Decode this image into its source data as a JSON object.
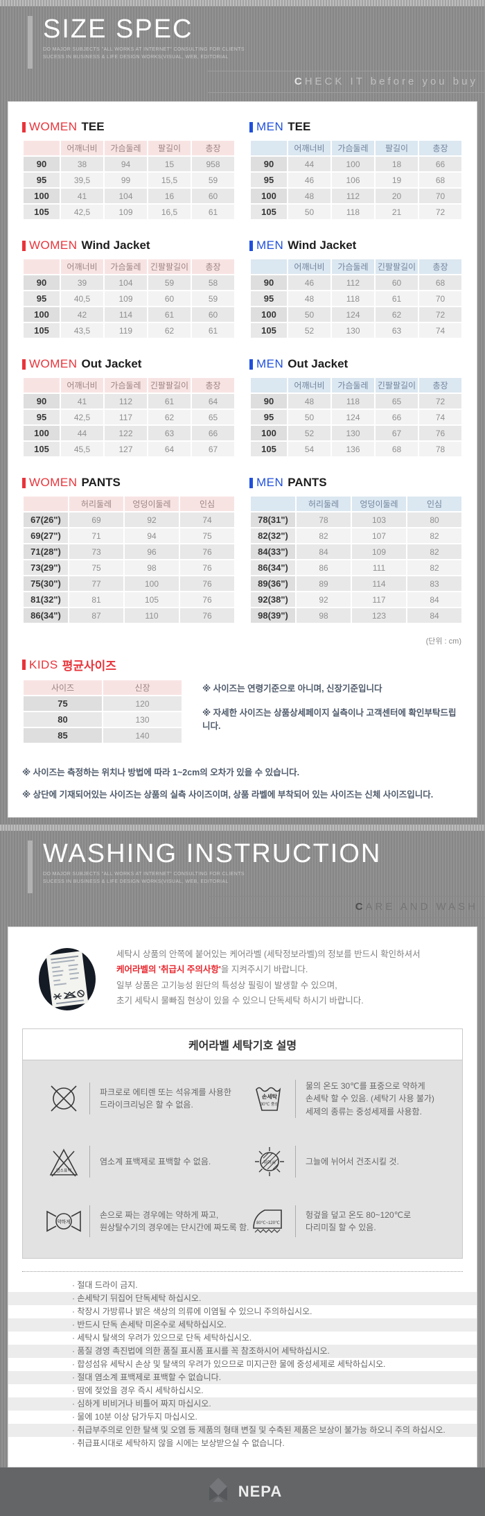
{
  "size_section": {
    "title": "SIZE SPEC",
    "subtitle1": "DO MAJOR SUBJECTS \"ALL WORKS AT INTERNET\" CONSULTING FOR CLIENTS",
    "subtitle2": "SUCESS IN BUSINESS & LIFE DESIGN WORKS(VISUAL, WEB, EDITORIAL",
    "tagline": "CHECK IT before you buy",
    "unit_note": "(단위 : cm)",
    "foot_notes": [
      "※ 사이즈는 측정하는 위치나 방법에 따라 1~2cm의 오차가 있을 수 있습니다.",
      "※ 상단에 기재되어있는 사이즈는 상품의 실측 사이즈이며, 상품 라벨에 부착되어 있는 사이즈는 신체 사이즈입니다."
    ]
  },
  "size_tables": [
    {
      "gender": "WOMEN",
      "name": "TEE",
      "headers": [
        "",
        "어깨너비",
        "가슴둘레",
        "팔길이",
        "총장"
      ],
      "rows": [
        {
          "label": "90",
          "values": [
            "38",
            "94",
            "15",
            "958"
          ]
        },
        {
          "label": "95",
          "values": [
            "39,5",
            "99",
            "15,5",
            "59"
          ]
        },
        {
          "label": "100",
          "values": [
            "41",
            "104",
            "16",
            "60"
          ]
        },
        {
          "label": "105",
          "values": [
            "42,5",
            "109",
            "16,5",
            "61"
          ]
        }
      ]
    },
    {
      "gender": "MEN",
      "name": "TEE",
      "headers": [
        "",
        "어깨너비",
        "가슴둘레",
        "팔길이",
        "총장"
      ],
      "rows": [
        {
          "label": "90",
          "values": [
            "44",
            "100",
            "18",
            "66"
          ]
        },
        {
          "label": "95",
          "values": [
            "46",
            "106",
            "19",
            "68"
          ]
        },
        {
          "label": "100",
          "values": [
            "48",
            "112",
            "20",
            "70"
          ]
        },
        {
          "label": "105",
          "values": [
            "50",
            "118",
            "21",
            "72"
          ]
        }
      ]
    },
    {
      "gender": "WOMEN",
      "name": "Wind Jacket",
      "headers": [
        "",
        "어깨너비",
        "가슴둘레",
        "긴팔팔길이",
        "총장"
      ],
      "rows": [
        {
          "label": "90",
          "values": [
            "39",
            "104",
            "59",
            "58"
          ]
        },
        {
          "label": "95",
          "values": [
            "40,5",
            "109",
            "60",
            "59"
          ]
        },
        {
          "label": "100",
          "values": [
            "42",
            "114",
            "61",
            "60"
          ]
        },
        {
          "label": "105",
          "values": [
            "43,5",
            "119",
            "62",
            "61"
          ]
        }
      ]
    },
    {
      "gender": "MEN",
      "name": "Wind Jacket",
      "headers": [
        "",
        "어깨너비",
        "가슴둘레",
        "긴팔팔길이",
        "총장"
      ],
      "rows": [
        {
          "label": "90",
          "values": [
            "46",
            "112",
            "60",
            "68"
          ]
        },
        {
          "label": "95",
          "values": [
            "48",
            "118",
            "61",
            "70"
          ]
        },
        {
          "label": "100",
          "values": [
            "50",
            "124",
            "62",
            "72"
          ]
        },
        {
          "label": "105",
          "values": [
            "52",
            "130",
            "63",
            "74"
          ]
        }
      ]
    },
    {
      "gender": "WOMEN",
      "name": "Out Jacket",
      "headers": [
        "",
        "어깨너비",
        "가슴둘레",
        "긴팔팔길이",
        "총장"
      ],
      "rows": [
        {
          "label": "90",
          "values": [
            "41",
            "112",
            "61",
            "64"
          ]
        },
        {
          "label": "95",
          "values": [
            "42,5",
            "117",
            "62",
            "65"
          ]
        },
        {
          "label": "100",
          "values": [
            "44",
            "122",
            "63",
            "66"
          ]
        },
        {
          "label": "105",
          "values": [
            "45,5",
            "127",
            "64",
            "67"
          ]
        }
      ]
    },
    {
      "gender": "MEN",
      "name": "Out Jacket",
      "headers": [
        "",
        "어깨너비",
        "가슴둘레",
        "긴팔팔길이",
        "총장"
      ],
      "rows": [
        {
          "label": "90",
          "values": [
            "48",
            "118",
            "65",
            "72"
          ]
        },
        {
          "label": "95",
          "values": [
            "50",
            "124",
            "66",
            "74"
          ]
        },
        {
          "label": "100",
          "values": [
            "52",
            "130",
            "67",
            "76"
          ]
        },
        {
          "label": "105",
          "values": [
            "54",
            "136",
            "68",
            "78"
          ]
        }
      ]
    },
    {
      "gender": "WOMEN",
      "name": "PANTS",
      "headers": [
        "",
        "허리둘레",
        "엉덩이둘레",
        "인심"
      ],
      "rows": [
        {
          "label": "67(26\")",
          "values": [
            "69",
            "92",
            "74"
          ]
        },
        {
          "label": "69(27\")",
          "values": [
            "71",
            "94",
            "75"
          ]
        },
        {
          "label": "71(28\")",
          "values": [
            "73",
            "96",
            "76"
          ]
        },
        {
          "label": "73(29\")",
          "values": [
            "75",
            "98",
            "76"
          ]
        },
        {
          "label": "75(30\")",
          "values": [
            "77",
            "100",
            "76"
          ]
        },
        {
          "label": "81(32\")",
          "values": [
            "81",
            "105",
            "76"
          ]
        },
        {
          "label": "86(34\")",
          "values": [
            "87",
            "110",
            "76"
          ]
        }
      ]
    },
    {
      "gender": "MEN",
      "name": "PANTS",
      "headers": [
        "",
        "허리둘레",
        "엉덩이둘레",
        "인심"
      ],
      "rows": [
        {
          "label": "78(31\")",
          "values": [
            "78",
            "103",
            "80"
          ]
        },
        {
          "label": "82(32\")",
          "values": [
            "82",
            "107",
            "82"
          ]
        },
        {
          "label": "84(33\")",
          "values": [
            "84",
            "109",
            "82"
          ]
        },
        {
          "label": "86(34\")",
          "values": [
            "86",
            "111",
            "82"
          ]
        },
        {
          "label": "89(36\")",
          "values": [
            "89",
            "114",
            "83"
          ]
        },
        {
          "label": "92(38\")",
          "values": [
            "92",
            "117",
            "84"
          ]
        },
        {
          "label": "98(39\")",
          "values": [
            "98",
            "123",
            "84"
          ]
        }
      ]
    }
  ],
  "kids": {
    "gender": "KIDS",
    "name": "평균사이즈",
    "table": {
      "headers": [
        "사이즈",
        "신장"
      ],
      "rows": [
        {
          "label": "75",
          "values": [
            "120"
          ]
        },
        {
          "label": "80",
          "values": [
            "130"
          ]
        },
        {
          "label": "85",
          "values": [
            "140"
          ]
        }
      ]
    },
    "notes": [
      "※ 사이즈는 연령기준으로 아니며, 신장기준입니다",
      "※ 자세한 사이즈는 상품상세페이지 실측이나 고객센터에 확인부탁드립니다."
    ]
  },
  "washing": {
    "title": "WASHING INSTRUCTION",
    "subtitle1": "DO MAJOR SUBJECTS \"ALL WORKS AT INTERNET\" CONSULTING FOR CLIENTS",
    "subtitle2": "SUCESS IN BUSINESS & LIFE DESIGN WORKS(VISUAL, WEB, EDITORIAL",
    "tagline": "CARE AND WASH",
    "intro": {
      "line1": "세탁시 상품의 안쪽에 붙어있는 케어라벨 (세탁정보라벨)의 정보를 반드시 확인하셔서",
      "line2_red": "케어라벨의 '취급시 주의사항'",
      "line2_rest": "을 지켜주시기 바랍니다.",
      "line3": "일부 상품은 고기능성 원단의 특성상 필링이 발생할 수 있으며,",
      "line4": "초기 세탁시 물빠짐 현상이 있을 수 있으니 단독세탁 하시기 바랍니다."
    },
    "symbols_title": "케어라벨 세탁기호 설명",
    "symbols": [
      {
        "icon": "no-dry-clean-icon",
        "text": "파크로로 에티렌 또는 석유계를 사용한\n드라이크리닝은 할 수 없음."
      },
      {
        "icon": "hand-wash-30-icon",
        "text": "물의 온도 30℃를 표중으로 약하게\n손세탁 할 수 있음. (세탁기 사용 불가)\n세제의 종류는 중성세제를 사용함."
      },
      {
        "icon": "no-chlorine-bleach-icon",
        "text": "염소계 표백제로 표백할 수 없음."
      },
      {
        "icon": "dry-in-shade-icon",
        "text": "그늘에 뉘어서 건조시킬 것."
      },
      {
        "icon": "wring-gently-icon",
        "text": "손으로 짜는 경우에는 약하게 짜고,\n원상탈수기의 경우에는 단시간에 짜도록 함."
      },
      {
        "icon": "iron-with-cloth-icon",
        "text": "헝겊을 덮고 온도 80~120℃로\n다리미질 할 수 있음."
      }
    ],
    "care_list": [
      "절대 드라이 금지.",
      "손세탁기 뒤집어 단독세탁 하십시오.",
      "착장시 가방류나 밝은 색상의 의류에 이염될 수 있으니 주의하십시오.",
      "반드시 단독 손세탁 미온수로 세탁하십시오.",
      "세탁시 탈색의 우려가 있으므로 단독 세탁하십시오.",
      "품질 경영 촉진법에 의한 품질 표시품 표시를 꼭 참조하시어 세탁하십시오.",
      "합성섬유 세탁시 손상 및 탈색의 우려가 있으므로 미지근한 물에 중성세제로 세탁하십시오.",
      "절대 염소계 표백제로 표백할 수 없습니다.",
      "땀에 젖었을 경우 즉시 세탁하십시오.",
      "심하게 비비거나 비틀어 짜지 마십시오.",
      "물에 10분 이상 담가두지 마십시오.",
      "취급부주의로 인한 탈색 및 오염 등 제품의 형태 변질 및 수축된 제품은 보상이 불가능 하오니 주의 하십시오.",
      "취급표시대로 세탁하지 않을 시에는 보상받으실 수 없습니다."
    ],
    "colors": {
      "accent_red": "#e8343a",
      "accent_blue": "#2050dc"
    }
  },
  "footer": {
    "brand": "NEPA"
  }
}
